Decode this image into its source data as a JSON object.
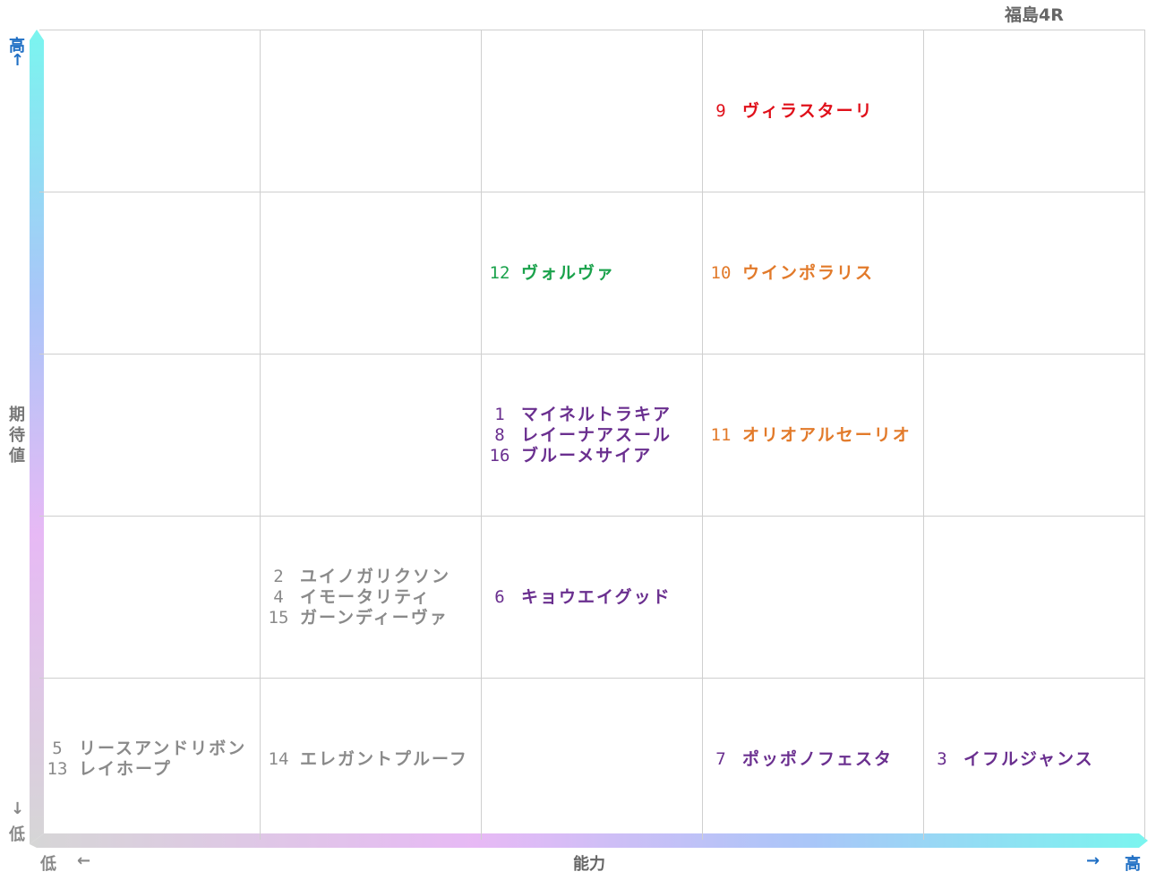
{
  "title": "福島4R",
  "axes": {
    "y_label": "期待値",
    "y_high": "高",
    "y_low": "低",
    "x_label": "能力",
    "x_high": "高",
    "x_low": "低",
    "arrow_up": "↑",
    "arrow_down": "↓",
    "arrow_left": "←",
    "arrow_right": "→"
  },
  "colors": {
    "red": "#e0101a",
    "green": "#1aa24b",
    "orange": "#e27a2a",
    "purple": "#6a2f8f",
    "gray": "#8a8a8a",
    "y_gradient": [
      "#7af5ef",
      "#a9c6f8",
      "#e7b9f5",
      "#d6d6d6"
    ],
    "x_gradient": [
      "#d6d6d6",
      "#e7b9f5",
      "#a9c6f8",
      "#7af5ef"
    ]
  },
  "chart_data": {
    "type": "table",
    "columns": 5,
    "rows": 5,
    "cells": [
      {
        "col": 3,
        "row": 0,
        "color": "red",
        "horses": [
          {
            "num": "9",
            "name": "ヴィラスターリ"
          }
        ]
      },
      {
        "col": 2,
        "row": 1,
        "color": "green",
        "horses": [
          {
            "num": "12",
            "name": "ヴォルヴァ"
          }
        ]
      },
      {
        "col": 3,
        "row": 1,
        "color": "orange",
        "horses": [
          {
            "num": "10",
            "name": "ウインポラリス"
          }
        ]
      },
      {
        "col": 2,
        "row": 2,
        "color": "purple",
        "horses": [
          {
            "num": "1",
            "name": "マイネルトラキア"
          },
          {
            "num": "8",
            "name": "レイーナアスール"
          },
          {
            "num": "16",
            "name": "ブルーメサイア"
          }
        ]
      },
      {
        "col": 3,
        "row": 2,
        "color": "orange",
        "horses": [
          {
            "num": "11",
            "name": "オリオアルセーリオ"
          }
        ]
      },
      {
        "col": 1,
        "row": 3,
        "color": "gray",
        "horses": [
          {
            "num": "2",
            "name": "ユイノガリクソン"
          },
          {
            "num": "4",
            "name": "イモータリティ"
          },
          {
            "num": "15",
            "name": "ガーンディーヴァ"
          }
        ]
      },
      {
        "col": 2,
        "row": 3,
        "color": "purple",
        "horses": [
          {
            "num": "6",
            "name": "キョウエイグッド"
          }
        ]
      },
      {
        "col": 0,
        "row": 4,
        "color": "gray",
        "horses": [
          {
            "num": "5",
            "name": "リースアンドリボン"
          },
          {
            "num": "13",
            "name": "レイホープ"
          }
        ]
      },
      {
        "col": 1,
        "row": 4,
        "color": "gray",
        "horses": [
          {
            "num": "14",
            "name": "エレガントプルーフ"
          }
        ]
      },
      {
        "col": 3,
        "row": 4,
        "color": "purple",
        "horses": [
          {
            "num": "7",
            "name": "ポッポノフェスタ"
          }
        ]
      },
      {
        "col": 4,
        "row": 4,
        "color": "purple",
        "horses": [
          {
            "num": "3",
            "name": "イフルジャンス"
          }
        ]
      }
    ]
  }
}
